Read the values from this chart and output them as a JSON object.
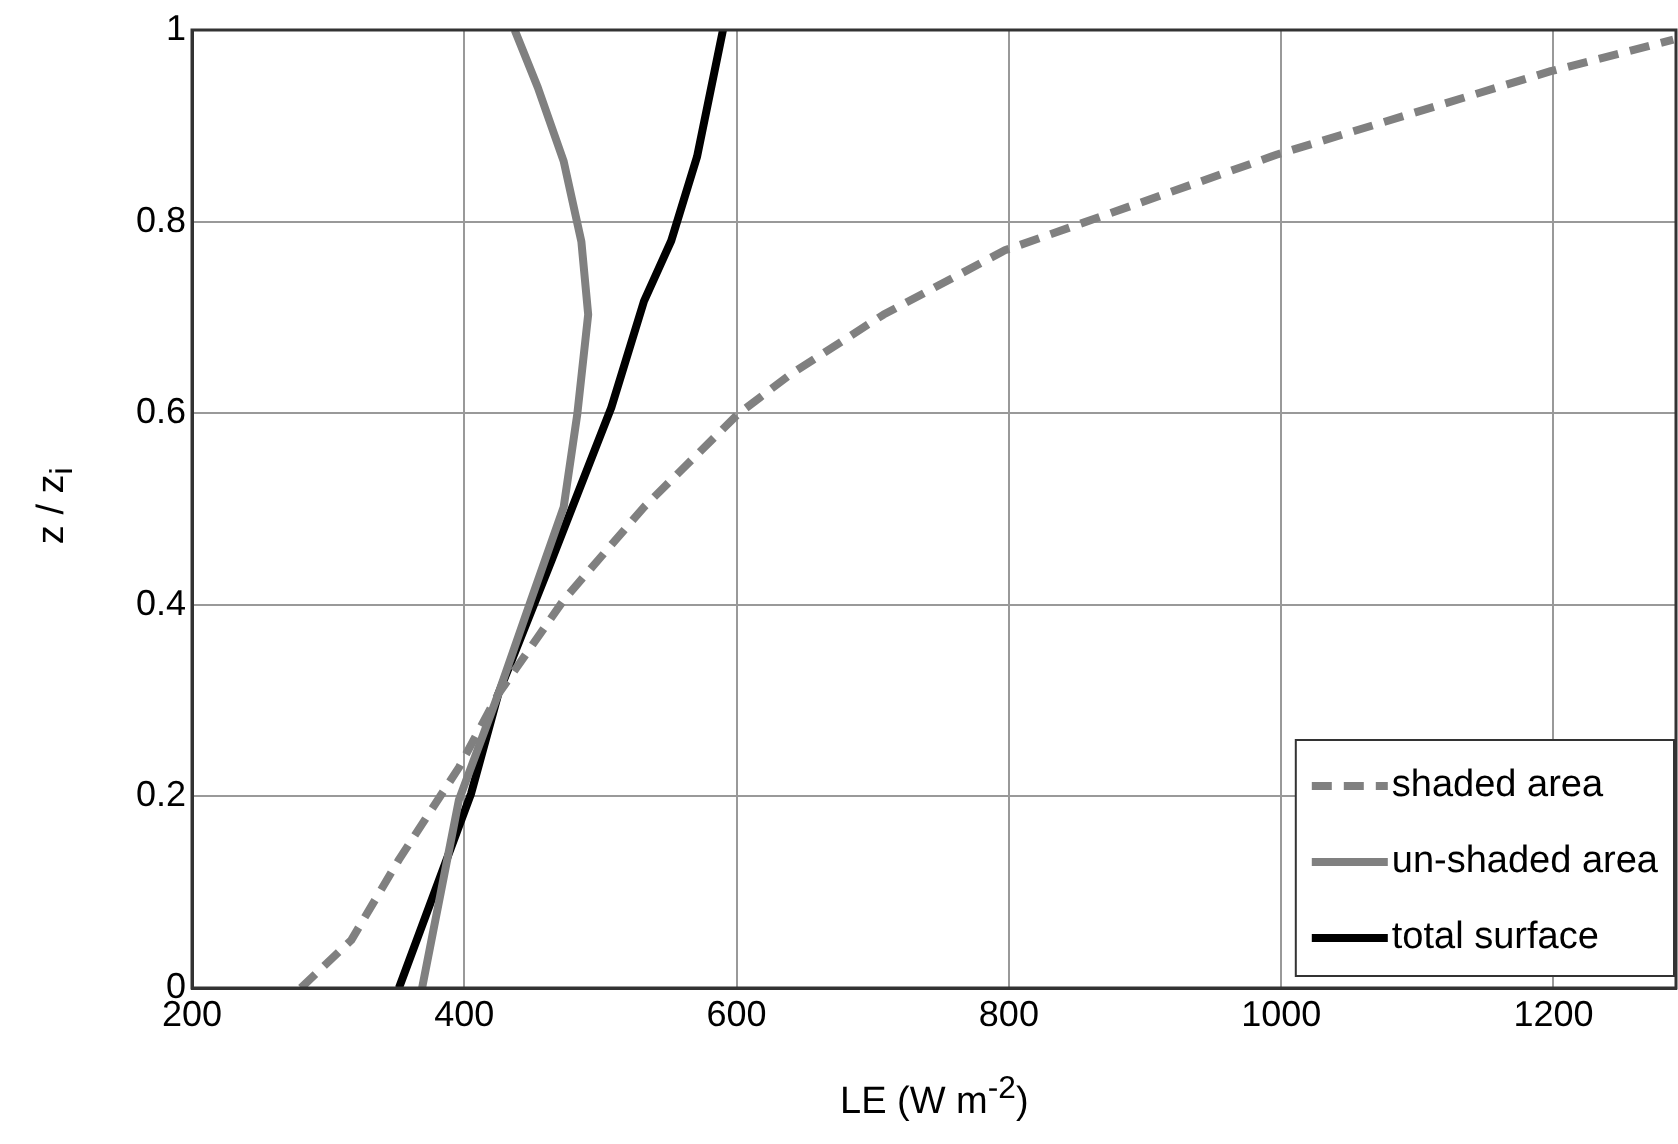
{
  "chart_data": {
    "type": "line",
    "xlabel": "LE (W m$^{-2}$)",
    "ylabel": "z / z$_{i}$",
    "xlim": [
      200,
      1290
    ],
    "xticks": [
      200,
      400,
      600,
      800,
      1000,
      1200
    ],
    "ylim": [
      0,
      1
    ],
    "yticks": [
      0,
      0.2,
      0.4,
      0.6,
      0.8,
      1
    ],
    "grid": true,
    "legend": "bottom right",
    "marker": "none",
    "series": [
      {
        "name": "shaded area",
        "color": "#808080",
        "line_style": "dashed",
        "x": [
          280,
          317,
          352,
          396,
          425,
          473,
          532,
          601,
          640,
          708,
          797,
          997,
          1198,
          1288
        ],
        "values": [
          0,
          0.05,
          0.134,
          0.23,
          0.307,
          0.405,
          0.502,
          0.599,
          0.641,
          0.703,
          0.77,
          0.87,
          0.957,
          0.99
        ]
      },
      {
        "name": "un-shaded area",
        "color": "#808080",
        "line_style": "solid",
        "x": [
          369,
          396,
          425,
          449,
          473,
          483,
          491,
          486,
          473,
          454,
          437
        ],
        "values": [
          0,
          0.196,
          0.307,
          0.405,
          0.502,
          0.599,
          0.703,
          0.779,
          0.863,
          0.94,
          1
        ]
      },
      {
        "name": "total surface",
        "color": "#000000",
        "line_style": "solid",
        "x": [
          352,
          405,
          425,
          464,
          508,
          532,
          552,
          571,
          590
        ],
        "values": [
          0,
          0.203,
          0.307,
          0.446,
          0.606,
          0.717,
          0.78,
          0.868,
          1
        ]
      }
    ]
  }
}
